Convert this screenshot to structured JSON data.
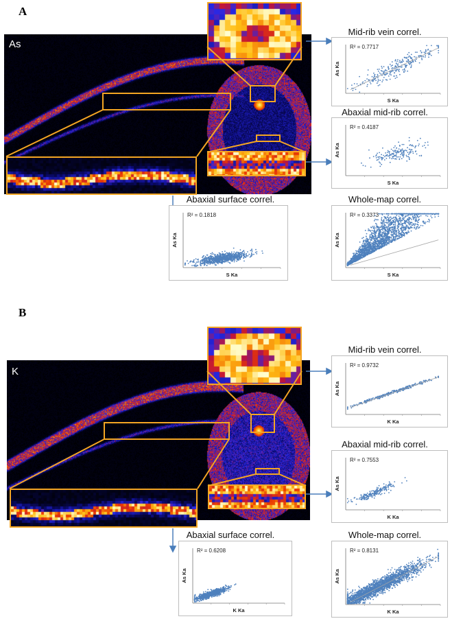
{
  "panels": [
    {
      "label": "A",
      "element": "As",
      "colors": {
        "box": "#f5a623",
        "arrow": "#4a7ebb",
        "point": "#4f81bd",
        "trend": "#a6a6a6"
      },
      "charts": [
        {
          "id": "midrib-vein",
          "title": "Mid-rib vein correl.",
          "r2": "R² = 0.7717",
          "xlabel": "S Ka",
          "ylabel": "As Ka",
          "chart_data": {
            "type": "scatter",
            "n": 260,
            "slope": 0.9,
            "intercept": 0.05,
            "spread": 0.22,
            "xcenter": 0.55,
            "xspread": 0.22,
            "trend": true
          }
        },
        {
          "id": "abaxial-midrib",
          "title": "Abaxial mid-rib correl.",
          "r2": "R² = 0.4187",
          "xlabel": "S Ka",
          "ylabel": "As Ka",
          "chart_data": {
            "type": "scatter",
            "n": 180,
            "slope": 0.45,
            "intercept": 0.2,
            "spread": 0.22,
            "xcenter": 0.55,
            "xspread": 0.14,
            "trend": false
          }
        },
        {
          "id": "abaxial-surface",
          "title": "Abaxial surface correl.",
          "r2": "R² = 0.1818",
          "xlabel": "S Ka",
          "ylabel": "As Ka",
          "chart_data": {
            "type": "scatter",
            "n": 900,
            "slope": 0.25,
            "intercept": 0.07,
            "spread": 0.12,
            "xcenter": 0.4,
            "xspread": 0.13,
            "trend": false
          }
        },
        {
          "id": "whole-map",
          "title": "Whole-map correl.",
          "r2": "R² = 0.3373",
          "xlabel": "S Ka",
          "ylabel": "As Ka",
          "chart_data": {
            "type": "scatter",
            "n": 2600,
            "slope": 0.9,
            "intercept": 0.02,
            "spread": 0.7,
            "xcenter": 0.3,
            "xspread": 0.3,
            "trend": true
          }
        }
      ]
    },
    {
      "label": "B",
      "element": "K",
      "colors": {
        "box": "#f5a623",
        "arrow": "#4a7ebb",
        "point": "#4f81bd",
        "trend": "#a6a6a6"
      },
      "charts": [
        {
          "id": "midrib-vein",
          "title": "Mid-rib vein correl.",
          "r2": "R² = 0.9732",
          "xlabel": "K Ka",
          "ylabel": "As Ka",
          "chart_data": {
            "type": "scatter",
            "n": 320,
            "slope": 0.62,
            "intercept": 0.12,
            "spread": 0.04,
            "xcenter": 0.5,
            "xspread": 0.22,
            "trend": true
          }
        },
        {
          "id": "abaxial-midrib",
          "title": "Abaxial mid-rib correl.",
          "r2": "R² = 0.7553",
          "xlabel": "K Ka",
          "ylabel": "As Ka",
          "chart_data": {
            "type": "scatter",
            "n": 200,
            "slope": 0.75,
            "intercept": 0.1,
            "spread": 0.12,
            "xcenter": 0.3,
            "xspread": 0.12,
            "trend": false
          }
        },
        {
          "id": "abaxial-surface",
          "title": "Abaxial surface correl.",
          "r2": "R² = 0.6208",
          "xlabel": "K Ka",
          "ylabel": "As Ka",
          "chart_data": {
            "type": "scatter",
            "n": 800,
            "slope": 0.55,
            "intercept": 0.06,
            "spread": 0.08,
            "xcenter": 0.2,
            "xspread": 0.09,
            "trend": false
          }
        },
        {
          "id": "whole-map",
          "title": "Whole-map correl.",
          "r2": "R² = 0.8131",
          "xlabel": "K Ka",
          "ylabel": "As Ka",
          "chart_data": {
            "type": "scatter",
            "n": 2400,
            "slope": 0.85,
            "intercept": 0.02,
            "spread": 0.18,
            "xcenter": 0.3,
            "xspread": 0.25,
            "trend": true
          }
        }
      ]
    }
  ]
}
